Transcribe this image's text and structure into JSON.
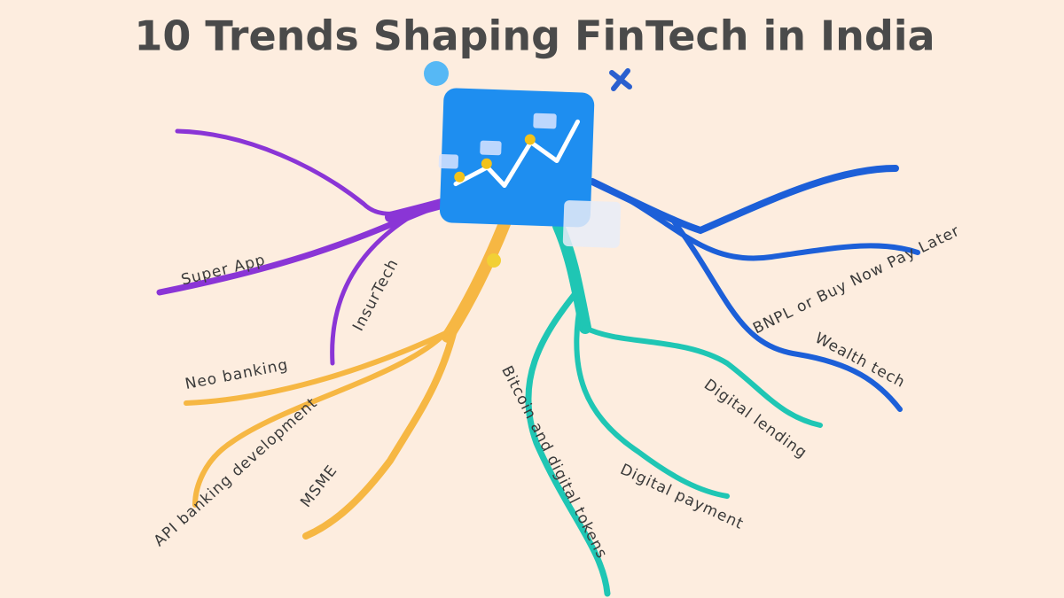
{
  "title": "10 Trends Shaping FinTech in India",
  "nodes": [
    {
      "label": "Super App"
    },
    {
      "label": "InsurTech"
    },
    {
      "label": "Neo banking"
    },
    {
      "label": "API banking development"
    },
    {
      "label": "MSME"
    },
    {
      "label": "Bitcoin and digital tokens"
    },
    {
      "label": "Digital payment"
    },
    {
      "label": "Digital lending"
    },
    {
      "label": "BNPL or Buy Now Pay Later"
    },
    {
      "label": "Wealth tech"
    }
  ]
}
